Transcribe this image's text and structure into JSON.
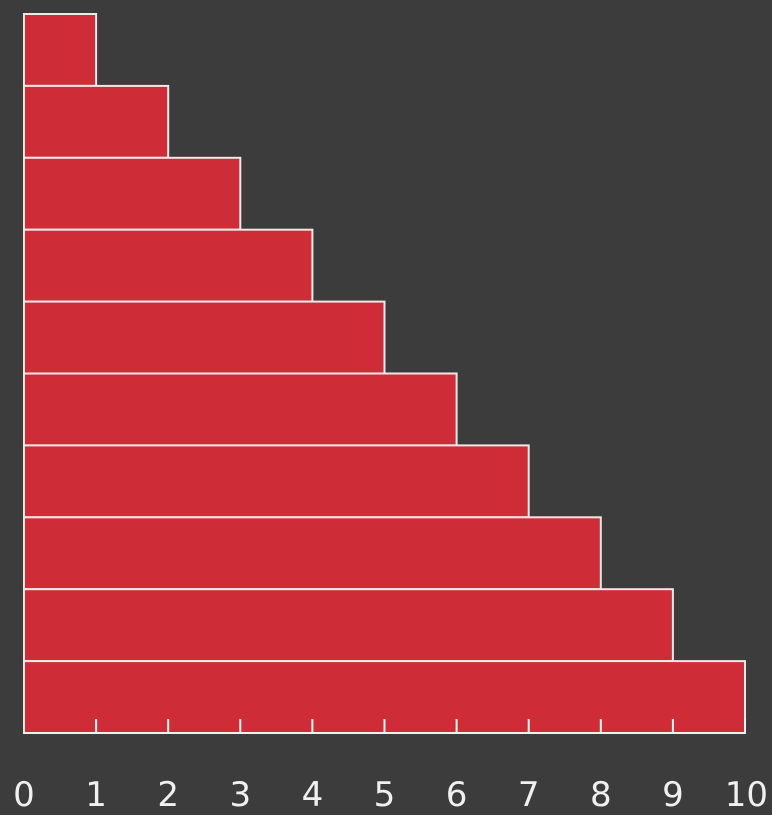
{
  "chart_data": {
    "type": "bar",
    "orientation": "horizontal",
    "stacking": "none",
    "values": [
      1,
      2,
      3,
      4,
      5,
      6,
      7,
      8,
      9,
      10
    ],
    "x_ticks": [
      "0",
      "1",
      "2",
      "3",
      "4",
      "5",
      "6",
      "7",
      "8",
      "9",
      "10"
    ],
    "xlim": [
      0,
      10
    ],
    "title": "",
    "xlabel": "",
    "ylabel": "",
    "grid": false,
    "legend": "none",
    "colors": {
      "background": "#3c3c3c",
      "bar_fill": "#ce2d38",
      "bar_stroke": "#f2e6e6",
      "axis": "#f2f2f2",
      "text": "#f0f0f0"
    }
  }
}
